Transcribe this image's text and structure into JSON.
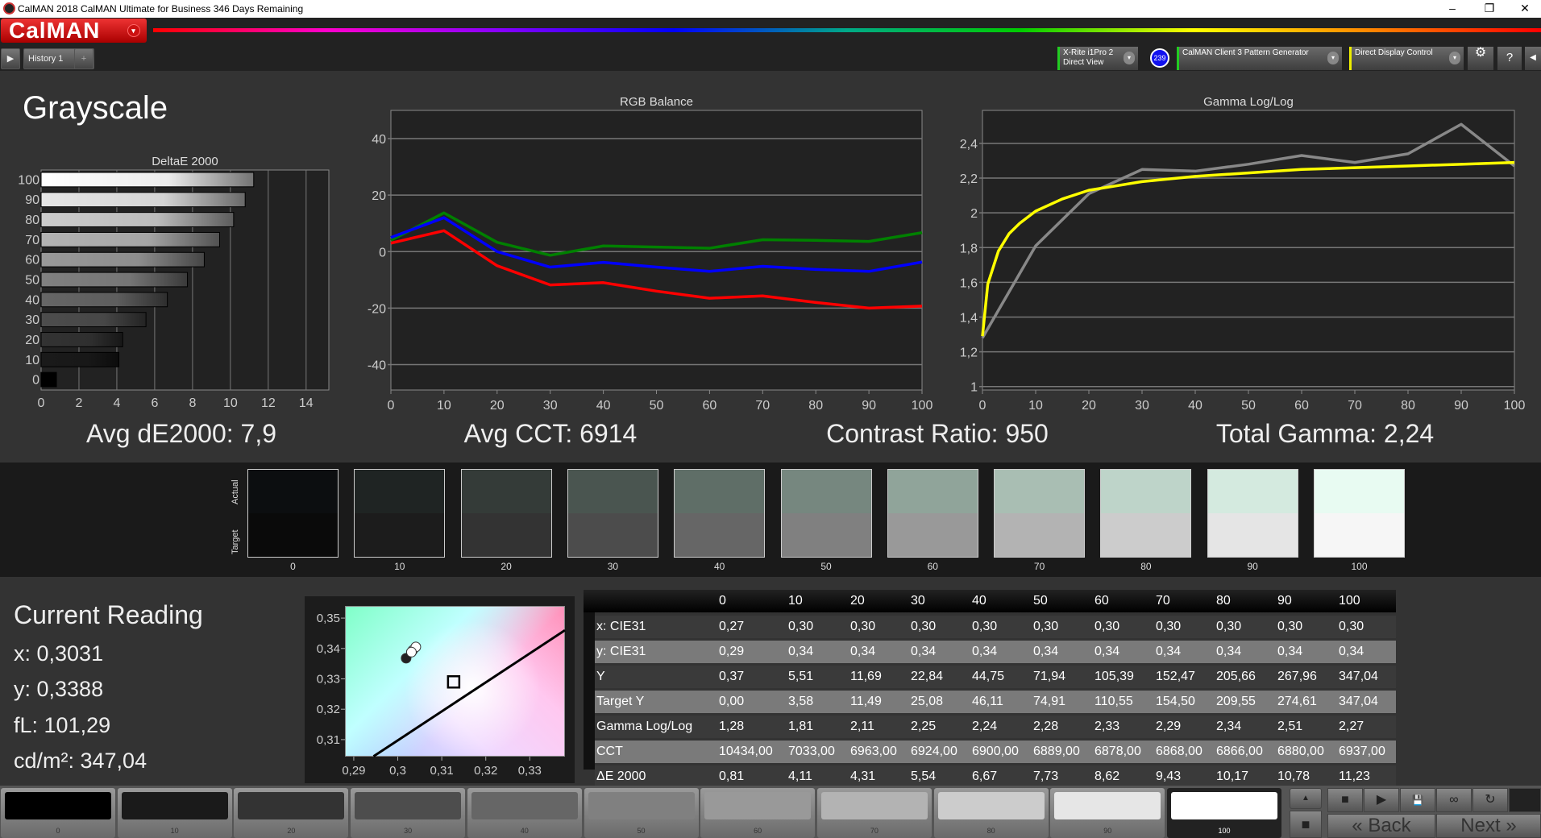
{
  "window": {
    "title": "CalMAN 2018 CalMAN Ultimate for Business 346 Days Remaining",
    "minimize": "–",
    "restore": "❐",
    "close": "✕"
  },
  "app": {
    "logo": "CalMAN",
    "logo_menu": "▾"
  },
  "tabs": {
    "play": "▶",
    "history": "History 1",
    "add": "+"
  },
  "devices": {
    "meter": "X-Rite i1Pro 2",
    "meter_mode": "Direct View",
    "badge": "239",
    "pattern": "CalMAN Client 3 Pattern Generator",
    "display": "Direct Display Control",
    "dropdown": "▾",
    "settings": "⚙",
    "help": "?",
    "collapse": "◀"
  },
  "page": {
    "title": "Grayscale"
  },
  "summary": {
    "de": "Avg dE2000: 7,9",
    "cct": "Avg CCT: 6914",
    "contrast": "Contrast Ratio: 950",
    "gamma": "Total Gamma: 2,24"
  },
  "swatches": {
    "actual_label": "Actual",
    "target_label": "Target",
    "items": [
      {
        "label": "0",
        "actual": "#0c0e10",
        "target": "#0a0a0a"
      },
      {
        "label": "10",
        "actual": "#1f2423",
        "target": "#1c1c1c"
      },
      {
        "label": "20",
        "actual": "#343b38",
        "target": "#333333"
      },
      {
        "label": "30",
        "actual": "#4a5550",
        "target": "#4c4c4c"
      },
      {
        "label": "40",
        "actual": "#5f6e67",
        "target": "#666666"
      },
      {
        "label": "50",
        "actual": "#76877f",
        "target": "#808080"
      },
      {
        "label": "60",
        "actual": "#90a49a",
        "target": "#999999"
      },
      {
        "label": "70",
        "actual": "#a9beb3",
        "target": "#b3b3b3"
      },
      {
        "label": "80",
        "actual": "#bed4c9",
        "target": "#cccccc"
      },
      {
        "label": "90",
        "actual": "#d4eadf",
        "target": "#e5e5e5"
      },
      {
        "label": "100",
        "actual": "#e8fbf2",
        "target": "#f6f6f6"
      }
    ]
  },
  "reading": {
    "title": "Current Reading",
    "x": "x: 0,3031",
    "y": "y: 0,3388",
    "fl": "fL: 101,29",
    "cdm2": "cd/m²: 347,04"
  },
  "table": {
    "headers": [
      "",
      "0",
      "10",
      "20",
      "30",
      "40",
      "50",
      "60",
      "70",
      "80",
      "90",
      "100"
    ],
    "rows": [
      [
        "x: CIE31",
        "0,27",
        "0,30",
        "0,30",
        "0,30",
        "0,30",
        "0,30",
        "0,30",
        "0,30",
        "0,30",
        "0,30",
        "0,30"
      ],
      [
        "y: CIE31",
        "0,29",
        "0,34",
        "0,34",
        "0,34",
        "0,34",
        "0,34",
        "0,34",
        "0,34",
        "0,34",
        "0,34",
        "0,34"
      ],
      [
        "Y",
        "0,37",
        "5,51",
        "11,69",
        "22,84",
        "44,75",
        "71,94",
        "105,39",
        "152,47",
        "205,66",
        "267,96",
        "347,04"
      ],
      [
        "Target Y",
        "0,00",
        "3,58",
        "11,49",
        "25,08",
        "46,11",
        "74,91",
        "110,55",
        "154,50",
        "209,55",
        "274,61",
        "347,04"
      ],
      [
        "Gamma Log/Log",
        "1,28",
        "1,81",
        "2,11",
        "2,25",
        "2,24",
        "2,28",
        "2,33",
        "2,29",
        "2,34",
        "2,51",
        "2,27"
      ],
      [
        "CCT",
        "10434,00",
        "7033,00",
        "6963,00",
        "6924,00",
        "6900,00",
        "6889,00",
        "6878,00",
        "6868,00",
        "6866,00",
        "6880,00",
        "6937,00"
      ],
      [
        "ΔE 2000",
        "0,81",
        "4,11",
        "4,31",
        "5,54",
        "6,67",
        "7,73",
        "8,62",
        "9,43",
        "10,17",
        "10,78",
        "11,23"
      ]
    ]
  },
  "patches": {
    "selected": "100",
    "items": [
      {
        "label": "0",
        "color": "#000000"
      },
      {
        "label": "10",
        "color": "#1a1a1a"
      },
      {
        "label": "20",
        "color": "#333333"
      },
      {
        "label": "30",
        "color": "#4d4d4d"
      },
      {
        "label": "40",
        "color": "#666666"
      },
      {
        "label": "50",
        "color": "#808080"
      },
      {
        "label": "60",
        "color": "#999999"
      },
      {
        "label": "70",
        "color": "#b3b3b3"
      },
      {
        "label": "80",
        "color": "#cccccc"
      },
      {
        "label": "90",
        "color": "#e6e6e6"
      },
      {
        "label": "100",
        "color": "#ffffff"
      }
    ]
  },
  "controls": {
    "up": "▲",
    "stop": "■",
    "play": "▶",
    "save": "💾",
    "loop": "∞",
    "refresh": "↻",
    "back": "Back",
    "next": "Next",
    "back_icon": "«",
    "next_icon": "»"
  },
  "chart_data": [
    {
      "type": "bar",
      "title": "DeltaE 2000",
      "orientation": "horizontal",
      "categories": [
        "0",
        "10",
        "20",
        "30",
        "40",
        "50",
        "60",
        "70",
        "80",
        "90",
        "100"
      ],
      "values": [
        0.81,
        4.11,
        4.31,
        5.54,
        6.67,
        7.73,
        8.62,
        9.43,
        10.17,
        10.78,
        11.23
      ],
      "xlim": [
        0,
        15.2
      ],
      "xticks": [
        0,
        2,
        4,
        6,
        8,
        10,
        12,
        14
      ],
      "grid": true
    },
    {
      "type": "line",
      "title": "RGB Balance",
      "x": [
        0,
        10,
        20,
        30,
        40,
        50,
        60,
        70,
        80,
        90,
        100
      ],
      "xticks": [
        0,
        10,
        20,
        30,
        40,
        50,
        60,
        70,
        80,
        90,
        100
      ],
      "ylim": [
        -49,
        50
      ],
      "yticks": [
        -40,
        -20,
        0,
        20,
        40
      ],
      "grid": true,
      "series": [
        {
          "color": "#008000",
          "values": [
            4,
            13.7,
            3.3,
            -1.3,
            2,
            1.6,
            1.2,
            4.2,
            4,
            3.6,
            6.7
          ]
        },
        {
          "color": "#0000ff",
          "values": [
            5,
            12,
            0,
            -5.5,
            -3.8,
            -5.5,
            -7,
            -5.2,
            -6.3,
            -7,
            -3.7
          ]
        },
        {
          "color": "#ff0000",
          "values": [
            3,
            7.4,
            -5,
            -11.8,
            -11,
            -14,
            -16.5,
            -15.7,
            -18,
            -20,
            -19.3
          ]
        }
      ]
    },
    {
      "type": "line",
      "title": "Gamma Log/Log",
      "xticks": [
        0,
        10,
        20,
        30,
        40,
        50,
        60,
        70,
        80,
        90,
        100
      ],
      "ylim": [
        0.98,
        2.59
      ],
      "yticks": [
        1,
        1.2,
        1.4,
        1.6,
        1.8,
        2,
        2.2,
        2.4
      ],
      "ytick_labels": [
        "1",
        "1,2",
        "1,4",
        "1,6",
        "1,8",
        "2",
        "2,2",
        "2,4"
      ],
      "grid": true,
      "series": [
        {
          "color": "#888888",
          "x": [
            0,
            10,
            20,
            30,
            40,
            50,
            60,
            70,
            80,
            90,
            100
          ],
          "values": [
            1.28,
            1.81,
            2.11,
            2.25,
            2.24,
            2.28,
            2.33,
            2.29,
            2.34,
            2.51,
            2.27
          ]
        },
        {
          "color": "#ffff00",
          "x": [
            0,
            1,
            3,
            5,
            7,
            10,
            15,
            20,
            30,
            40,
            50,
            60,
            70,
            80,
            90,
            100
          ],
          "values": [
            1.29,
            1.59,
            1.78,
            1.88,
            1.94,
            2.01,
            2.08,
            2.13,
            2.18,
            2.21,
            2.23,
            2.25,
            2.26,
            2.27,
            2.28,
            2.29
          ]
        }
      ]
    },
    {
      "type": "scatter",
      "title": "",
      "xlim": [
        0.288,
        0.338
      ],
      "ylim": [
        0.3044,
        0.354
      ],
      "xticks": [
        0.29,
        0.3,
        0.31,
        0.32,
        0.33
      ],
      "xtick_labels": [
        "0,29",
        "0,3",
        "0,31",
        "0,32",
        "0,33"
      ],
      "yticks": [
        0.31,
        0.32,
        0.33,
        0.34,
        0.35
      ],
      "ytick_labels": [
        "0,31",
        "0,32",
        "0,33",
        "0,34",
        "0,35"
      ],
      "target": {
        "x": 0.3127,
        "y": 0.329
      },
      "points": [
        {
          "x": 0.3019,
          "y": 0.3368
        },
        {
          "x": 0.3031,
          "y": 0.3388
        },
        {
          "x": 0.3034,
          "y": 0.3394
        },
        {
          "x": 0.3041,
          "y": 0.3405
        }
      ],
      "locus": [
        [
          0.2945,
          0.3045
        ],
        [
          0.338,
          0.346
        ]
      ]
    }
  ]
}
